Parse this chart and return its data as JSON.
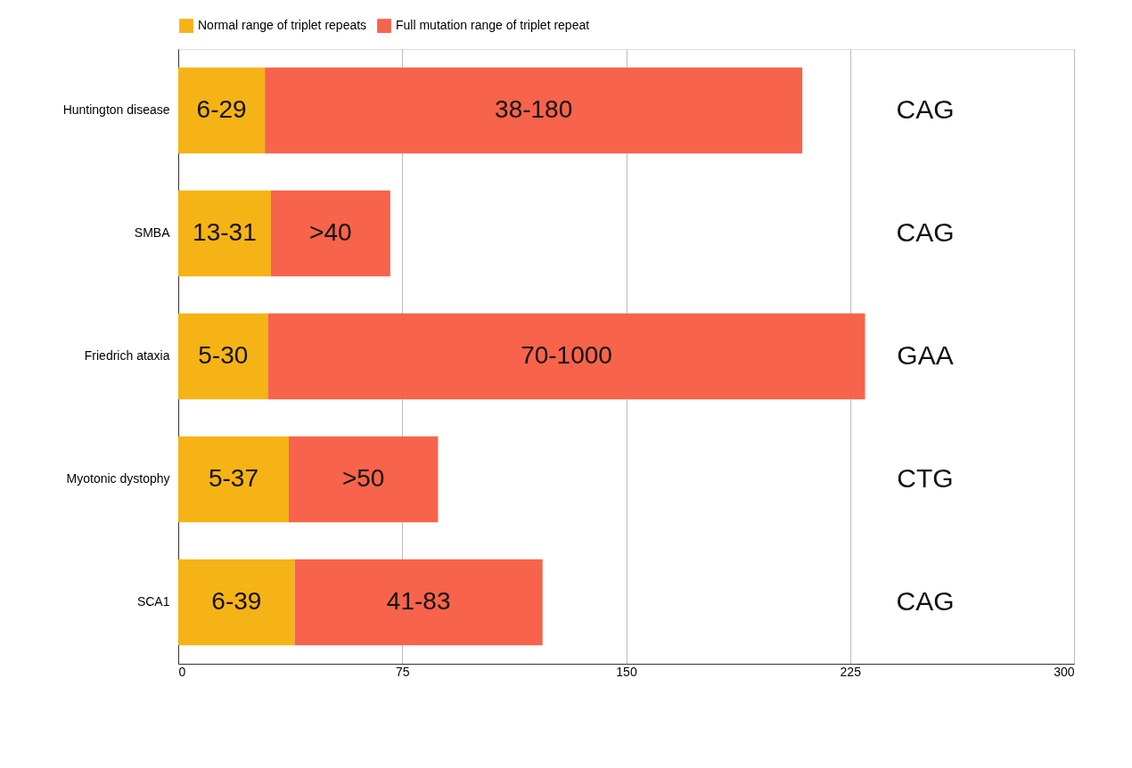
{
  "chart_data": {
    "type": "bar",
    "orientation": "horizontal",
    "stacked": true,
    "categories": [
      "Huntington disease",
      "SMBA",
      "Friedrich ataxia",
      "Myotonic dystophy",
      "SCA1"
    ],
    "series": [
      {
        "name": "Normal range of triplet repeats",
        "color": "#f5b316",
        "values": [
          29,
          31,
          30,
          37,
          39
        ],
        "value_labels": [
          "6-29",
          "13-31",
          "5-30",
          "5-37",
          "6-39"
        ]
      },
      {
        "name": "Full mutation range of triplet repeat",
        "color": "#f7634b",
        "values": [
          180,
          40,
          200,
          50,
          83
        ],
        "value_labels": [
          "38-180",
          ">40",
          "70-1000",
          ">50",
          "41-83"
        ]
      }
    ],
    "xlim": [
      0,
      300
    ],
    "xticks": [
      0,
      75,
      150,
      225,
      300
    ],
    "grid": "x",
    "legend": "top",
    "annotations": [
      "CAG",
      "CAG",
      "GAA",
      "CTG",
      "CAG"
    ]
  }
}
